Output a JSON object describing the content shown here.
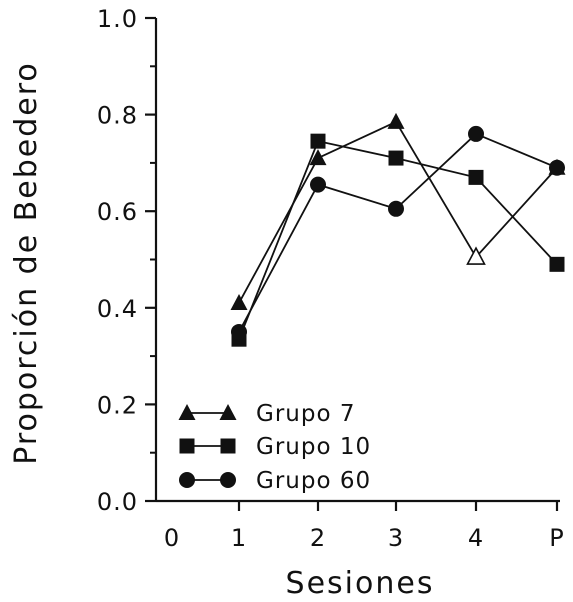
{
  "chart_data": {
    "type": "line",
    "xlabel": "Sesiones",
    "ylabel": "Proporción de Bebedero",
    "categories": [
      "0",
      "1",
      "2",
      "3",
      "4",
      "P"
    ],
    "y_ticks": [
      "0.0",
      "0.2",
      "0.4",
      "0.6",
      "0.8",
      "1.0"
    ],
    "ylim": [
      0,
      1
    ],
    "grid": false,
    "legend_position": "bottom-left",
    "series": [
      {
        "name": "Grupo 7",
        "marker": "triangle",
        "x": [
          "1",
          "2",
          "3",
          "4",
          "P"
        ],
        "values": [
          0.41,
          0.71,
          0.785,
          0.505,
          0.69
        ]
      },
      {
        "name": "Grupo 10",
        "marker": "square",
        "x": [
          "1",
          "2",
          "3",
          "4",
          "P"
        ],
        "values": [
          0.335,
          0.745,
          0.71,
          0.67,
          0.49
        ]
      },
      {
        "name": "Grupo 60",
        "marker": "circle",
        "x": [
          "1",
          "2",
          "3",
          "4",
          "P"
        ],
        "values": [
          0.35,
          0.655,
          0.605,
          0.76,
          0.69
        ]
      }
    ]
  }
}
